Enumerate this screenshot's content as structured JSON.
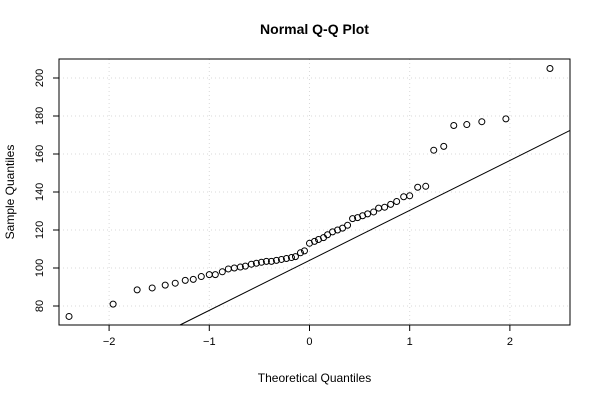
{
  "chart_data": {
    "type": "scatter",
    "title": "Normal Q-Q Plot",
    "xlabel": "Theoretical Quantiles",
    "ylabel": "Sample Quantiles",
    "xlim": [
      -2.5,
      2.6
    ],
    "ylim": [
      70,
      210
    ],
    "x_ticks": [
      -2,
      -1,
      0,
      1,
      2
    ],
    "y_ticks": [
      80,
      100,
      120,
      140,
      160,
      180,
      200
    ],
    "grid": true,
    "legend": "none",
    "colors": {
      "points": "#000000",
      "line": "#000000",
      "grid": "#d9d9d9",
      "frame": "#000000"
    },
    "reference_line": {
      "slope": 26.3,
      "intercept": 104.0
    },
    "points": [
      {
        "x": -2.4,
        "y": 74.5
      },
      {
        "x": -1.96,
        "y": 81.0
      },
      {
        "x": -1.72,
        "y": 88.5
      },
      {
        "x": -1.57,
        "y": 89.5
      },
      {
        "x": -1.44,
        "y": 91.0
      },
      {
        "x": -1.34,
        "y": 92.0
      },
      {
        "x": -1.24,
        "y": 93.5
      },
      {
        "x": -1.16,
        "y": 94.0
      },
      {
        "x": -1.08,
        "y": 95.5
      },
      {
        "x": -1.0,
        "y": 96.5
      },
      {
        "x": -0.94,
        "y": 96.5
      },
      {
        "x": -0.87,
        "y": 98.0
      },
      {
        "x": -0.81,
        "y": 99.5
      },
      {
        "x": -0.75,
        "y": 100.0
      },
      {
        "x": -0.69,
        "y": 100.5
      },
      {
        "x": -0.64,
        "y": 101.0
      },
      {
        "x": -0.58,
        "y": 102.0
      },
      {
        "x": -0.53,
        "y": 102.5
      },
      {
        "x": -0.48,
        "y": 103.0
      },
      {
        "x": -0.43,
        "y": 103.5
      },
      {
        "x": -0.38,
        "y": 103.5
      },
      {
        "x": -0.33,
        "y": 104.0
      },
      {
        "x": -0.28,
        "y": 104.5
      },
      {
        "x": -0.23,
        "y": 105.0
      },
      {
        "x": -0.18,
        "y": 105.5
      },
      {
        "x": -0.14,
        "y": 106.0
      },
      {
        "x": -0.09,
        "y": 108.0
      },
      {
        "x": -0.05,
        "y": 109.0
      },
      {
        "x": 0.0,
        "y": 113.0
      },
      {
        "x": 0.05,
        "y": 114.0
      },
      {
        "x": 0.09,
        "y": 115.0
      },
      {
        "x": 0.14,
        "y": 116.0
      },
      {
        "x": 0.18,
        "y": 117.5
      },
      {
        "x": 0.23,
        "y": 119.0
      },
      {
        "x": 0.28,
        "y": 120.0
      },
      {
        "x": 0.33,
        "y": 121.0
      },
      {
        "x": 0.38,
        "y": 122.5
      },
      {
        "x": 0.43,
        "y": 126.0
      },
      {
        "x": 0.48,
        "y": 126.5
      },
      {
        "x": 0.53,
        "y": 127.5
      },
      {
        "x": 0.58,
        "y": 128.5
      },
      {
        "x": 0.64,
        "y": 129.5
      },
      {
        "x": 0.69,
        "y": 131.5
      },
      {
        "x": 0.75,
        "y": 132.0
      },
      {
        "x": 0.81,
        "y": 133.5
      },
      {
        "x": 0.87,
        "y": 135.0
      },
      {
        "x": 0.94,
        "y": 137.5
      },
      {
        "x": 1.0,
        "y": 138.0
      },
      {
        "x": 1.08,
        "y": 142.5
      },
      {
        "x": 1.16,
        "y": 143.0
      },
      {
        "x": 1.24,
        "y": 162.0
      },
      {
        "x": 1.34,
        "y": 164.0
      },
      {
        "x": 1.44,
        "y": 175.0
      },
      {
        "x": 1.57,
        "y": 175.5
      },
      {
        "x": 1.72,
        "y": 177.0
      },
      {
        "x": 1.96,
        "y": 178.5
      },
      {
        "x": 2.4,
        "y": 205.0
      }
    ]
  }
}
